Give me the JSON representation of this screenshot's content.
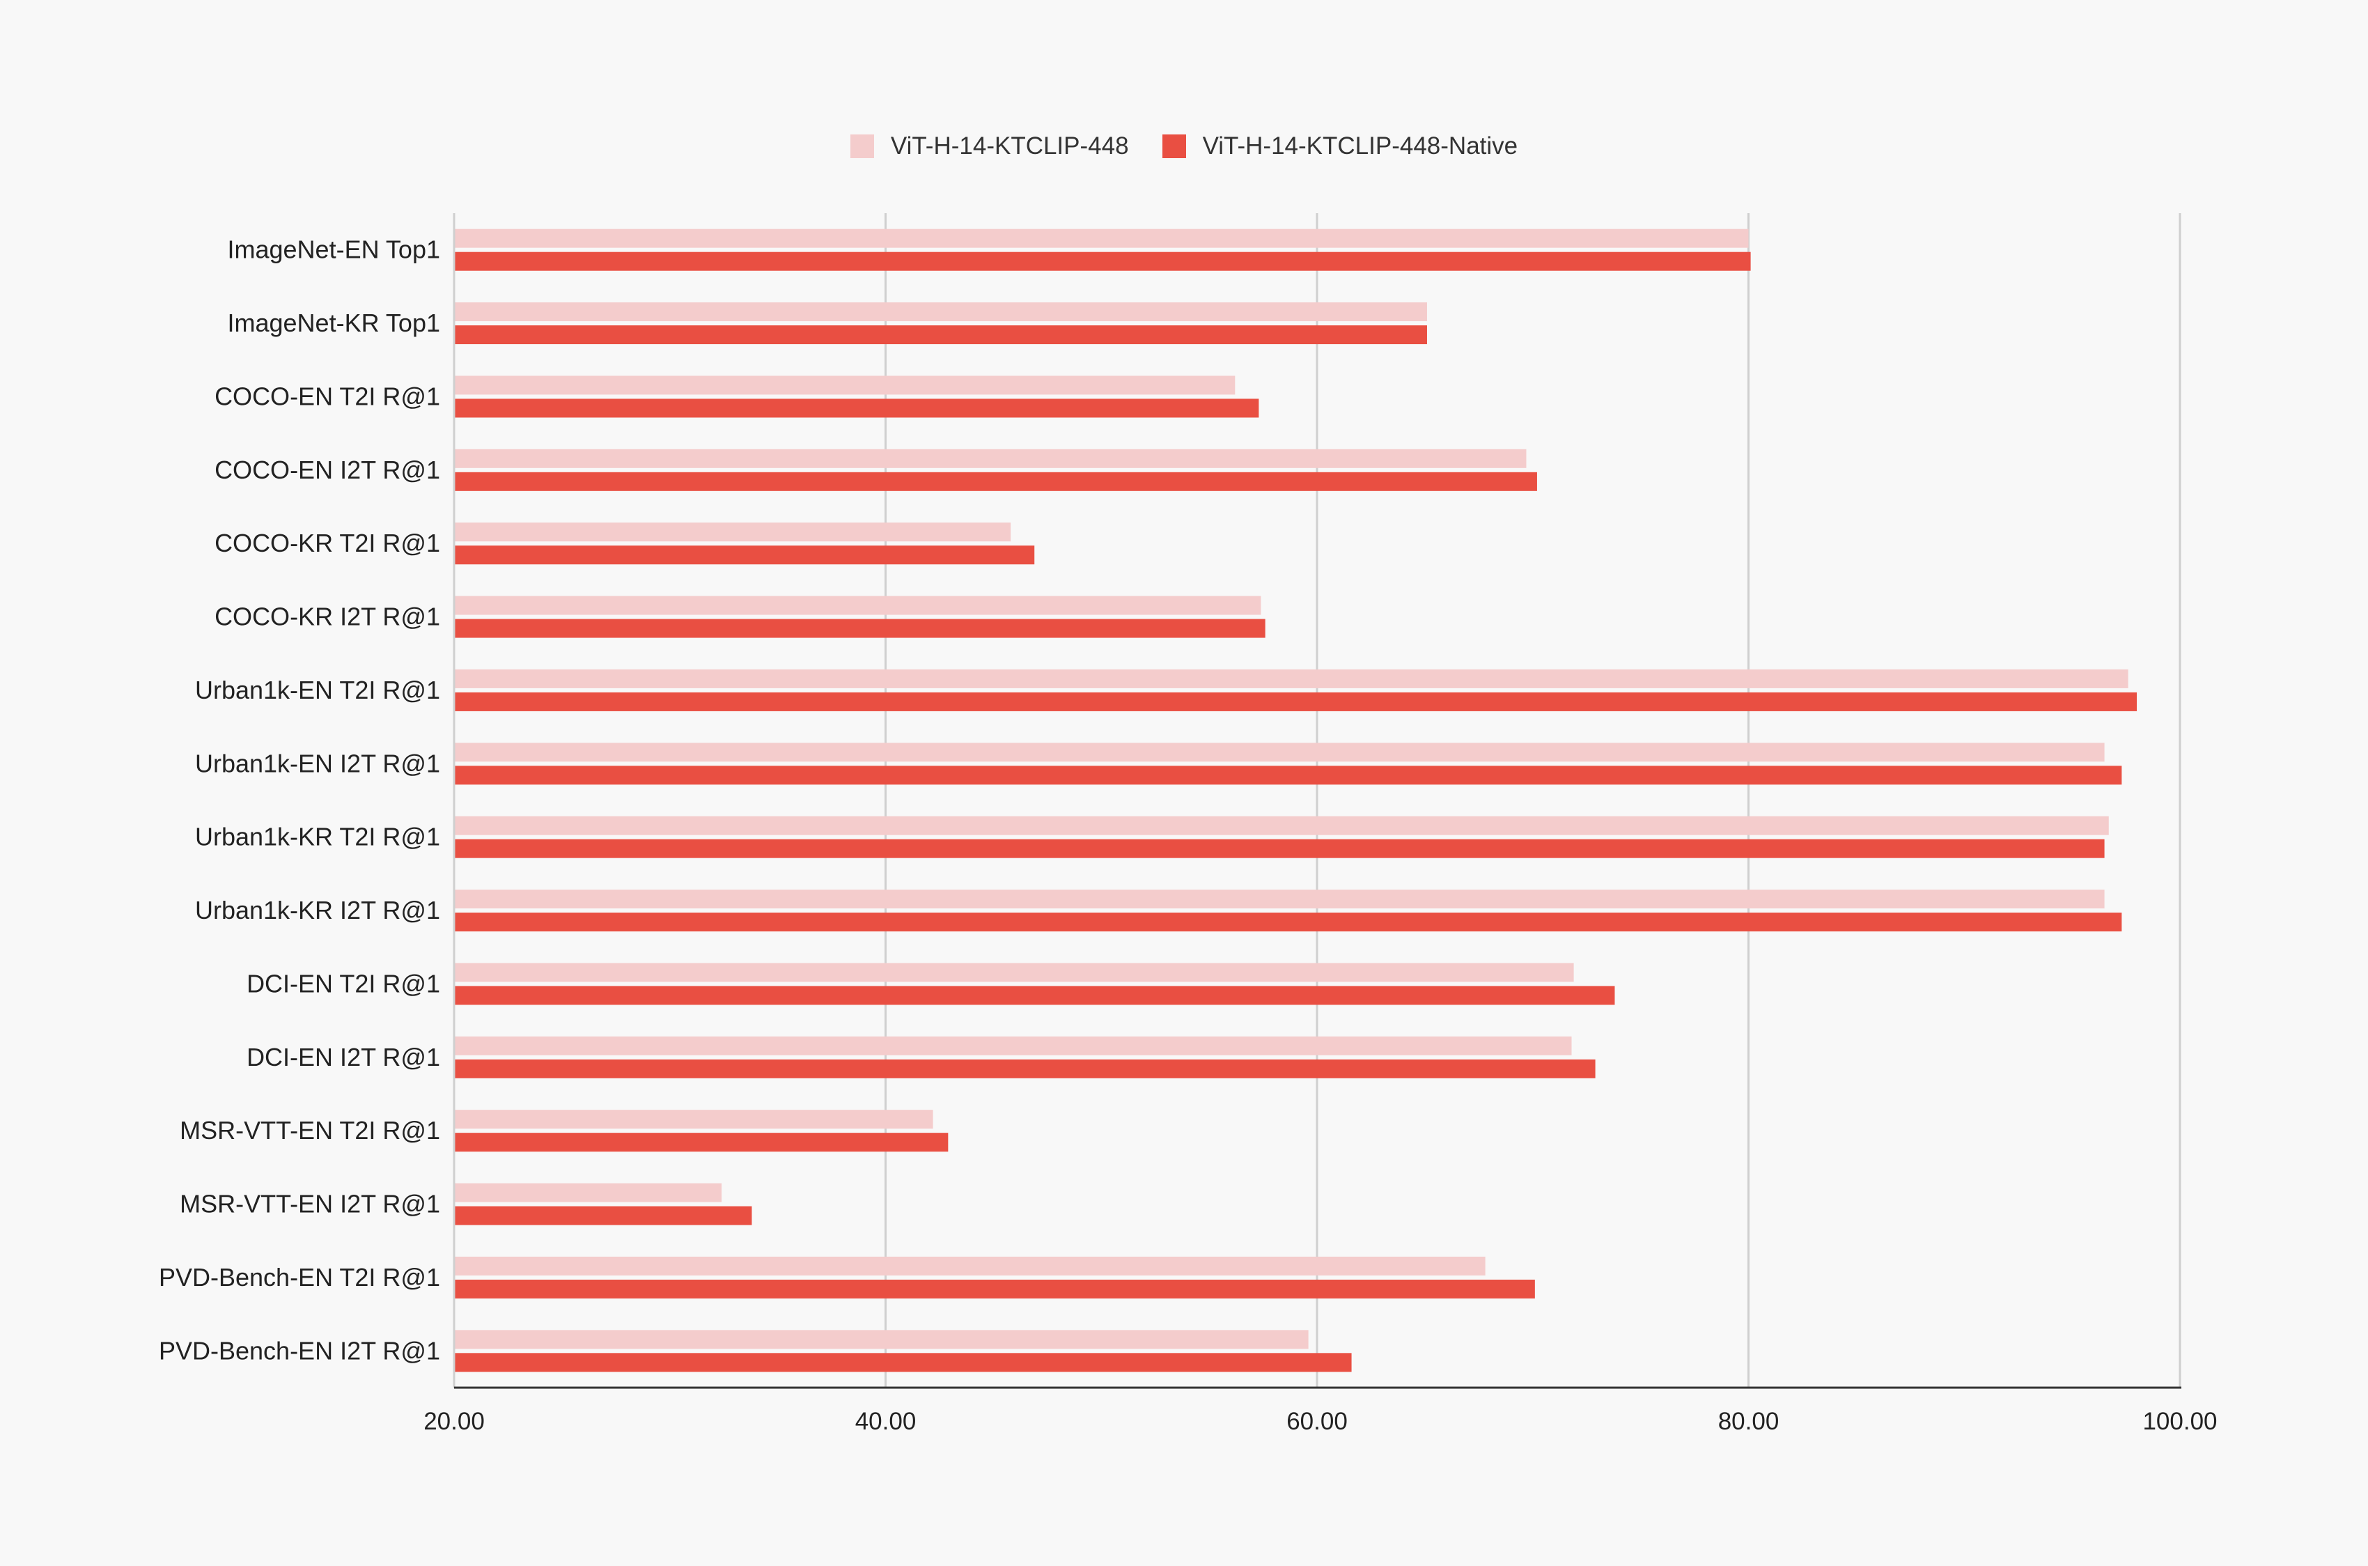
{
  "chart_data": {
    "type": "bar",
    "orientation": "horizontal",
    "categories": [
      "ImageNet-EN Top1",
      "ImageNet-KR Top1",
      "COCO-EN T2I R@1",
      "COCO-EN I2T R@1",
      "COCO-KR T2I R@1",
      "COCO-KR I2T R@1",
      "Urban1k-EN T2I R@1",
      "Urban1k-EN I2T R@1",
      "Urban1k-KR T2I R@1",
      "Urban1k-KR I2T R@1",
      "DCI-EN T2I R@1",
      "DCI-EN I2T R@1",
      "MSR-VTT-EN T2I R@1",
      "MSR-VTT-EN I2T R@1",
      "PVD-Bench-EN T2I R@1",
      "PVD-Bench-EN I2T R@1"
    ],
    "series": [
      {
        "name": "ViT-H-14-KTCLIP-448",
        "color": "#f4cccc",
        "values": [
          80.0,
          65.1,
          56.2,
          69.7,
          45.8,
          57.4,
          97.6,
          96.5,
          96.7,
          96.5,
          71.9,
          71.8,
          42.2,
          32.4,
          67.8,
          59.6
        ]
      },
      {
        "name": "ViT-H-14-KTCLIP-448-Native",
        "color": "#e94f42",
        "values": [
          80.1,
          65.1,
          57.3,
          70.2,
          46.9,
          57.6,
          98.0,
          97.3,
          96.5,
          97.3,
          73.8,
          72.9,
          42.9,
          33.8,
          70.1,
          61.6
        ]
      }
    ],
    "xlim": [
      20,
      100
    ],
    "xticks": [
      "20.00",
      "40.00",
      "60.00",
      "80.00",
      "100.00"
    ],
    "xtick_values": [
      20,
      40,
      60,
      80,
      100
    ],
    "grid": true,
    "legend_position": "top"
  }
}
